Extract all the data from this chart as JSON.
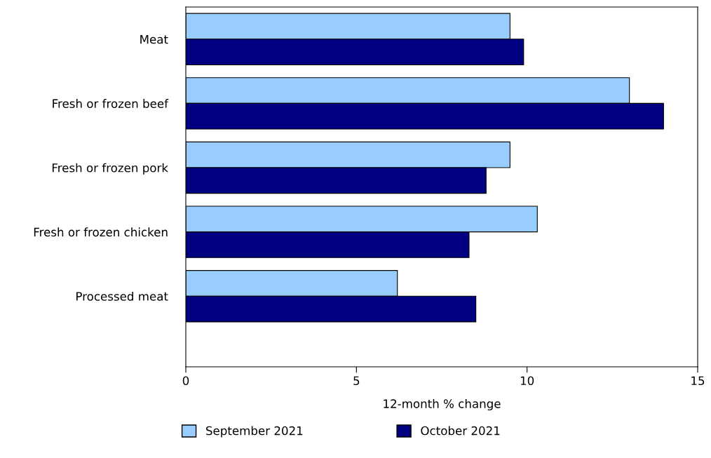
{
  "chart_data": {
    "type": "bar",
    "orientation": "horizontal",
    "xlabel": "12-month % change",
    "categories": [
      "Meat",
      "Fresh or frozen beef",
      "Fresh or frozen pork",
      "Fresh or frozen chicken",
      "Processed meat"
    ],
    "series": [
      {
        "name": "September 2021",
        "color": "#99ccff",
        "values": [
          9.5,
          13.0,
          9.5,
          10.3,
          6.2
        ]
      },
      {
        "name": "October 2021",
        "color": "#000080",
        "values": [
          9.9,
          14.0,
          8.8,
          8.3,
          8.5
        ]
      }
    ],
    "xlim": [
      0,
      15
    ],
    "xticks": [
      0,
      5,
      10,
      15
    ],
    "grid": false,
    "legend": "bottom"
  }
}
